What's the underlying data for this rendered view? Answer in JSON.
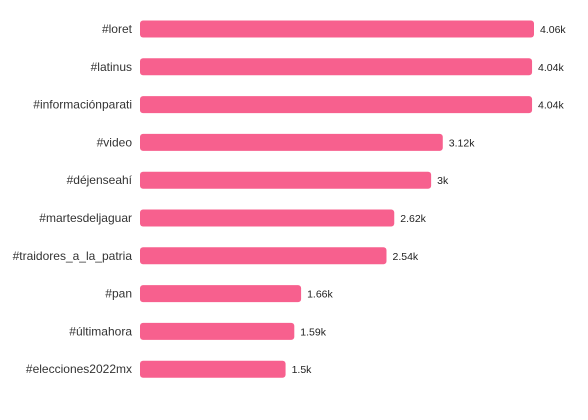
{
  "chart_data": {
    "type": "bar",
    "orientation": "horizontal",
    "categories": [
      "#loret",
      "#latinus",
      "#informaciónparati",
      "#video",
      "#déjenseahí",
      "#martesdeljaguar",
      "#traidores_a_la_patria",
      "#pan",
      "#últimahora",
      "#elecciones2022mx"
    ],
    "values": [
      4060,
      4040,
      4040,
      3120,
      3000,
      2620,
      2540,
      1660,
      1590,
      1500
    ],
    "value_labels": [
      "4.06k",
      "4.04k",
      "4.04k",
      "3.12k",
      "3k",
      "2.62k",
      "2.54k",
      "1.66k",
      "1.59k",
      "1.5k"
    ],
    "bar_color": "#f7608e",
    "grid": false,
    "legend": "none"
  }
}
